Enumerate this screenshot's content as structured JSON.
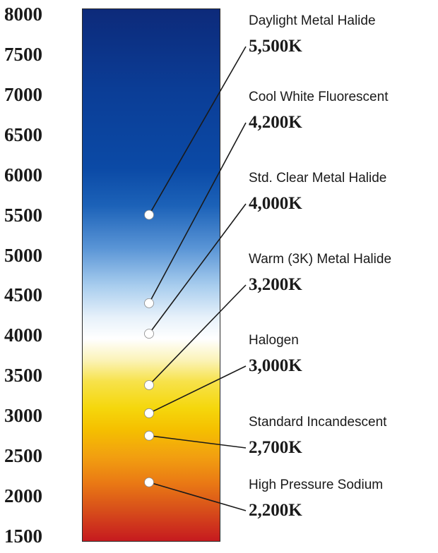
{
  "scale": {
    "ticks": [
      "8000",
      "7500",
      "7000",
      "6500",
      "6000",
      "5500",
      "5000",
      "4500",
      "4000",
      "3500",
      "3000",
      "2500",
      "2000",
      "1500"
    ],
    "tick_values": [
      8000,
      7500,
      7000,
      6500,
      6000,
      5500,
      5000,
      4500,
      4000,
      3500,
      3000,
      2500,
      2000,
      1500
    ]
  },
  "lamps": [
    {
      "name": "Daylight Metal Halide",
      "kelvin_label": "5,500K",
      "marker_k": 5500
    },
    {
      "name": "Cool White Fluorescent",
      "kelvin_label": "4,200K",
      "marker_k": 4400
    },
    {
      "name": "Std. Clear Metal Halide",
      "kelvin_label": "4,000K",
      "marker_k": 4020
    },
    {
      "name": "Warm (3K) Metal Halide",
      "kelvin_label": "3,200K",
      "marker_k": 3380
    },
    {
      "name": "Halogen",
      "kelvin_label": "3,000K",
      "marker_k": 3030
    },
    {
      "name": "Standard Incandescent",
      "kelvin_label": "2,700K",
      "marker_k": 2750
    },
    {
      "name": "High Pressure Sodium",
      "kelvin_label": "2,200K",
      "marker_k": 2170
    }
  ],
  "colors": {
    "bar_top": "#0d2a7a",
    "bar_blue": "#1c62b8",
    "bar_white": "#ffffff",
    "bar_yellow": "#f5d70c",
    "bar_orange": "#ea7a14",
    "bar_bottom": "#c61a1f",
    "line": "#1a1a1a",
    "marker": "#ffffff"
  }
}
